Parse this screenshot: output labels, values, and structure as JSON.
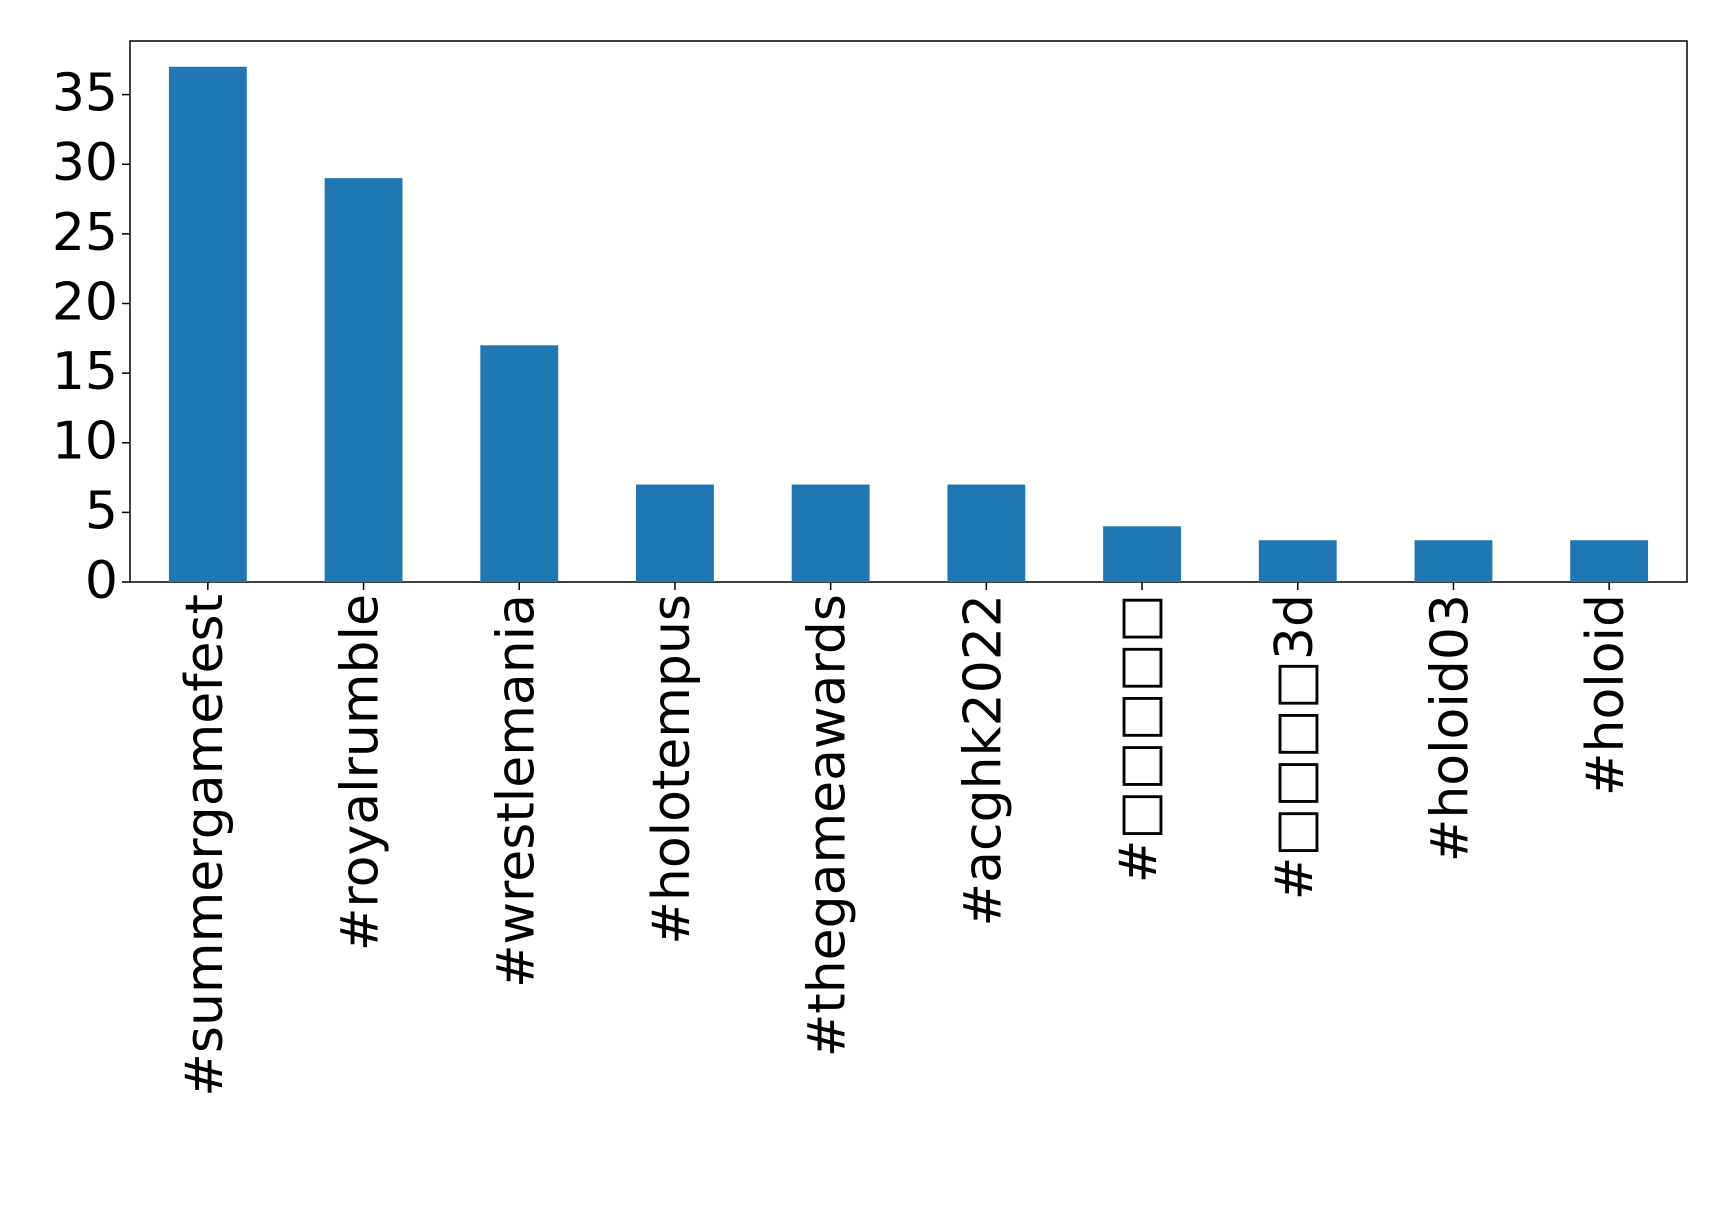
{
  "chart_data": {
    "type": "bar",
    "categories": [
      "#summergamefest",
      "#royalrumble",
      "#wrestlemania",
      "#holotempus",
      "#thegameawards",
      "#acghk2022",
      "#□□□□□",
      "#□□□□3d",
      "#holoid03",
      "#holoid"
    ],
    "values": [
      37,
      29,
      17,
      7,
      7,
      7,
      4,
      3,
      3,
      3
    ],
    "color": "#1f77b4",
    "ylim": [
      0,
      38.85
    ],
    "yticks": [
      0,
      5,
      10,
      15,
      20,
      25,
      30,
      35
    ],
    "grid": false
  }
}
